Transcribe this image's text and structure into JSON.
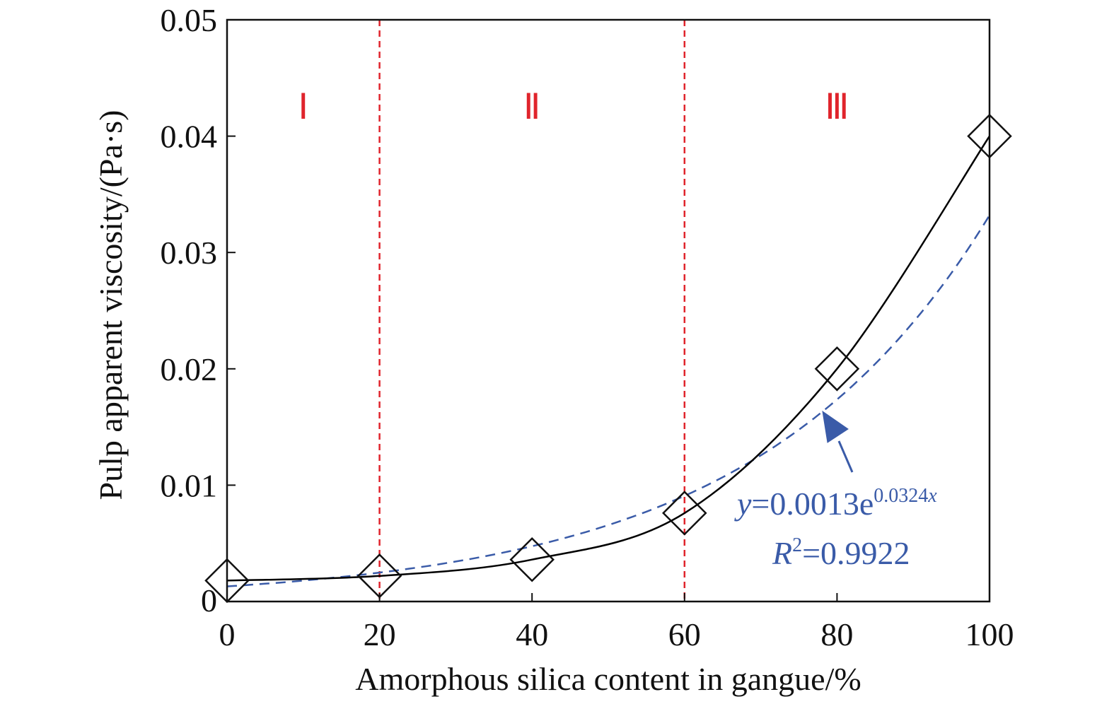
{
  "chart_data": {
    "type": "scatter",
    "xlabel": "Amorphous silica content in gangue/%",
    "ylabel": "Pulp apparent viscosity/(Pa·s)",
    "xlim": [
      0,
      100
    ],
    "ylim": [
      0,
      0.05
    ],
    "xticks": [
      "0",
      "20",
      "40",
      "60",
      "80",
      "100"
    ],
    "yticks": [
      "0",
      "0.01",
      "0.02",
      "0.03",
      "0.04",
      "0.05"
    ],
    "grid": false,
    "series": [
      {
        "marker": "diamond",
        "line": "smooth solid",
        "color": "#000000",
        "x": [
          0,
          20,
          40,
          60,
          80,
          100
        ],
        "y": [
          0.0018,
          0.0022,
          0.0036,
          0.0076,
          0.02,
          0.04
        ]
      }
    ],
    "fit": {
      "color": "#3a5ba8",
      "style": "dashed",
      "a": 0.0013,
      "b": 0.0324,
      "equation_y": "y",
      "equation_main": "=0.0013e",
      "equation_exp": "0.0324",
      "equation_exp_var": "x",
      "r2_label": "R",
      "r2_sup": "2",
      "r2_value": "=0.9922"
    },
    "regions": {
      "boundaries_x": [
        20,
        60
      ],
      "line_color": "#e0242c",
      "labels": [
        {
          "text": "Ⅰ",
          "x": 10
        },
        {
          "text": "Ⅱ",
          "x": 40
        },
        {
          "text": "Ⅲ",
          "x": 80
        }
      ]
    }
  }
}
